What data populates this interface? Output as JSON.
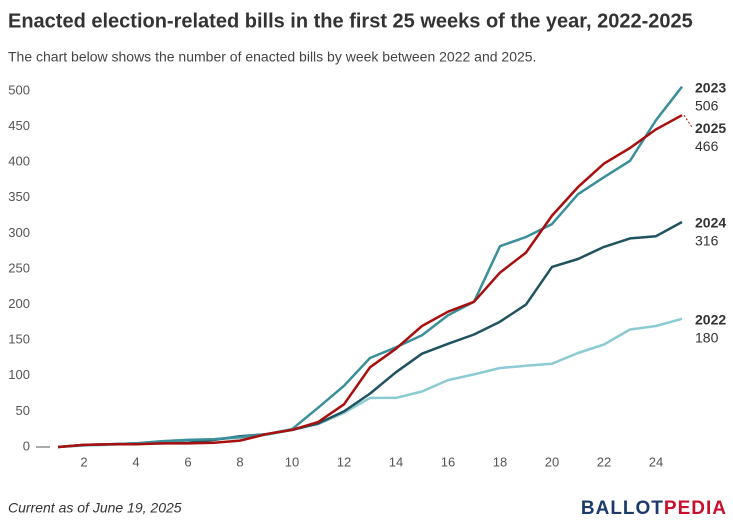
{
  "chart_data": {
    "type": "line",
    "title": "Enacted election-related bills in the first 25 weeks of the year, 2022-2025",
    "subtitle": "The chart below shows the number of enacted bills by week between 2022 and 2025.",
    "x": [
      1,
      2,
      3,
      4,
      5,
      6,
      7,
      8,
      9,
      10,
      11,
      12,
      13,
      14,
      15,
      16,
      17,
      18,
      19,
      20,
      21,
      22,
      23,
      24,
      25
    ],
    "xlim": [
      1,
      25
    ],
    "xticks": [
      2,
      4,
      6,
      8,
      10,
      12,
      14,
      16,
      18,
      20,
      22,
      24
    ],
    "ylim": [
      0,
      500
    ],
    "yticks": [
      0,
      50,
      100,
      150,
      200,
      250,
      300,
      350,
      400,
      450,
      500
    ],
    "series": [
      {
        "name": "2022",
        "color": "#8ccbd3",
        "values": [
          0,
          2,
          3,
          5,
          8,
          10,
          11,
          13,
          17,
          24,
          32,
          48,
          69,
          69,
          78,
          94,
          102,
          111,
          114,
          117,
          132,
          144,
          165,
          170,
          180
        ]
      },
      {
        "name": "2024",
        "color": "#1f5360",
        "values": [
          0,
          3,
          4,
          5,
          5,
          6,
          10,
          15,
          18,
          24,
          33,
          50,
          75,
          105,
          131,
          145,
          158,
          176,
          200,
          253,
          264,
          281,
          293,
          296,
          316
        ]
      },
      {
        "name": "2023",
        "color": "#3a8f9a",
        "values": [
          0,
          3,
          4,
          5,
          8,
          10,
          11,
          14,
          18,
          25,
          55,
          86,
          125,
          140,
          157,
          185,
          204,
          282,
          295,
          313,
          355,
          379,
          402,
          459,
          506
        ]
      },
      {
        "name": "2025",
        "color": "#a80f0f",
        "values": [
          0,
          3,
          4,
          4,
          5,
          5,
          6,
          9,
          18,
          24,
          35,
          60,
          112,
          138,
          170,
          190,
          204,
          245,
          273,
          325,
          365,
          398,
          420,
          446,
          466
        ]
      }
    ],
    "footnote": "Current as of June 19, 2025",
    "logo": [
      "BALLOT",
      "PEDIA"
    ]
  }
}
